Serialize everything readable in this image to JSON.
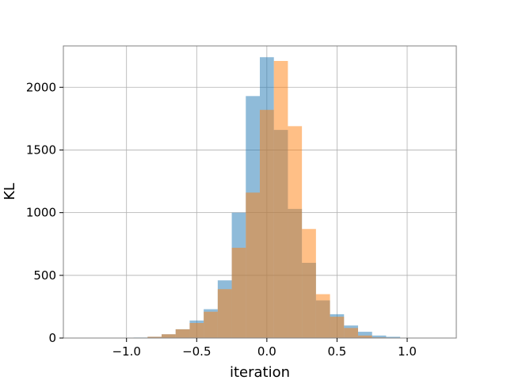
{
  "chart_data": {
    "type": "bar",
    "title": "",
    "xlabel": "iteration",
    "ylabel": "KL",
    "xlim": [
      -1.45,
      1.35
    ],
    "ylim": [
      0,
      2330
    ],
    "grid": true,
    "legend": "none",
    "xticks": [
      -1.0,
      -0.5,
      0.0,
      0.5,
      1.0
    ],
    "xtick_labels": [
      "−1.0",
      "−0.5",
      "0.0",
      "0.5",
      "1.0"
    ],
    "yticks": [
      0,
      500,
      1000,
      1500,
      2000
    ],
    "ytick_labels": [
      "0",
      "500",
      "1000",
      "1500",
      "2000"
    ],
    "series": [
      {
        "color": "#1f77b4",
        "opacity": 0.5,
        "bin_edges": [
          -1.35,
          -1.25,
          -1.15,
          -1.05,
          -0.95,
          -0.85,
          -0.75,
          -0.65,
          -0.55,
          -0.45,
          -0.35,
          -0.25,
          -0.15,
          -0.05,
          0.05,
          0.15,
          0.25,
          0.35,
          0.45,
          0.55,
          0.65,
          0.75,
          0.85,
          0.95,
          1.05,
          1.15,
          1.25
        ],
        "counts": [
          1,
          1,
          1,
          2,
          4,
          10,
          30,
          70,
          140,
          230,
          460,
          1000,
          1930,
          2240,
          1660,
          1030,
          600,
          300,
          190,
          100,
          50,
          20,
          10,
          3,
          1,
          1
        ]
      },
      {
        "color": "#ff7f0e",
        "opacity": 0.5,
        "bin_edges": [
          -0.95,
          -0.85,
          -0.75,
          -0.65,
          -0.55,
          -0.45,
          -0.35,
          -0.25,
          -0.15,
          -0.05,
          0.05,
          0.15,
          0.25,
          0.35,
          0.45,
          0.55,
          0.65,
          0.75,
          0.85,
          0.95
        ],
        "offset": 0.05,
        "counts": [
          3,
          10,
          30,
          70,
          120,
          210,
          390,
          720,
          1160,
          1820,
          2210,
          1690,
          870,
          350,
          170,
          80,
          20,
          5,
          1
        ]
      }
    ]
  }
}
